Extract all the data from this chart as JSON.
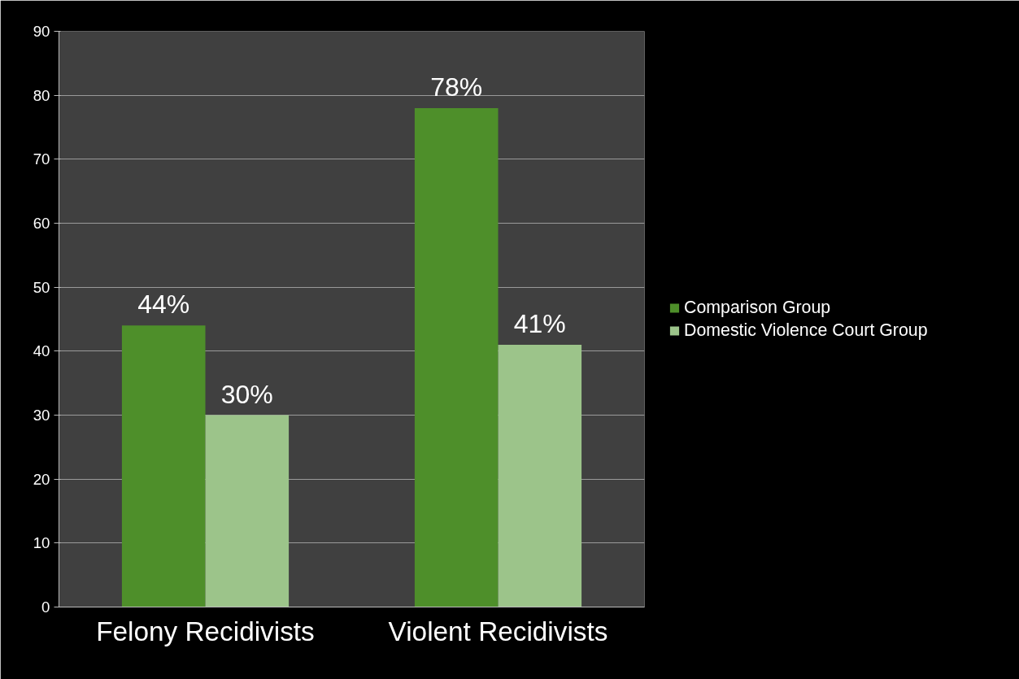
{
  "chart_data": {
    "type": "bar",
    "categories": [
      "Felony Recidivists",
      "Violent Recidivists"
    ],
    "series": [
      {
        "name": "Comparison Group",
        "color": "#4e8f2a",
        "values": [
          44,
          78
        ],
        "value_labels": [
          "44%",
          "78%"
        ]
      },
      {
        "name": "Domestic Violence Court Group",
        "color": "#9cc48a",
        "values": [
          30,
          41
        ],
        "value_labels": [
          "30%",
          "41%"
        ]
      }
    ],
    "ylim": [
      0,
      90
    ],
    "yticks": [
      0,
      10,
      20,
      30,
      40,
      50,
      60,
      70,
      80,
      90
    ],
    "grid": "y",
    "legend": "right"
  }
}
